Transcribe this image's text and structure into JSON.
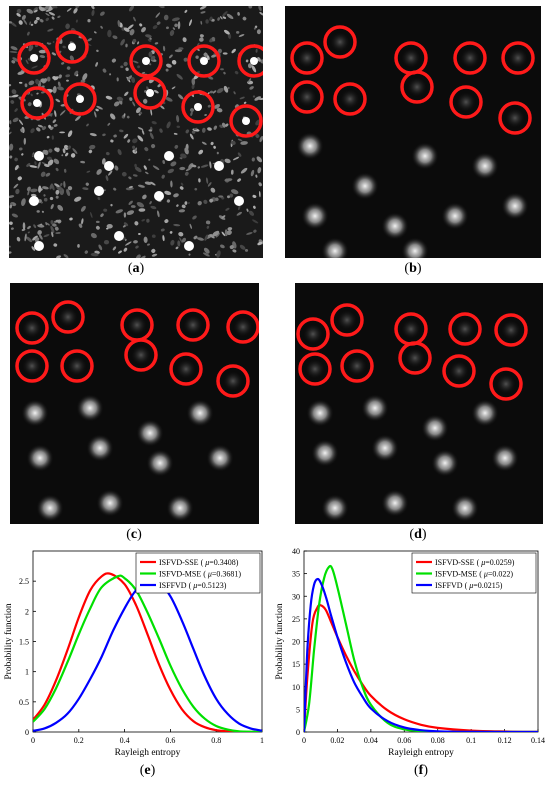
{
  "panels": [
    {
      "id": "a",
      "caption_letter": "a"
    },
    {
      "id": "b",
      "caption_letter": "b"
    },
    {
      "id": "c",
      "caption_letter": "c"
    },
    {
      "id": "d",
      "caption_letter": "d"
    }
  ],
  "chart_data": [
    {
      "type": "line",
      "caption_letter": "e",
      "xlabel": "Rayleigh entropy",
      "ylabel": "Probability function",
      "xlim": [
        0,
        1
      ],
      "ylim": [
        0,
        3
      ],
      "xticks": [
        0,
        0.2,
        0.4,
        0.6,
        0.8,
        1
      ],
      "xtick_labels": [
        "0",
        "0.2",
        "0.4",
        "0.6",
        "0.8",
        "1"
      ],
      "yticks": [
        0,
        0.5,
        1,
        1.5,
        2,
        2.5
      ],
      "ytick_labels": [
        "0",
        "0.5",
        "1",
        "1.5",
        "2",
        "2.5"
      ],
      "legend_placement": "top-right",
      "series": [
        {
          "name": "ISFVD-SSE",
          "mu": "0.3408",
          "color": "#ff0000",
          "x": [
            0,
            0.05,
            0.1,
            0.15,
            0.2,
            0.25,
            0.3,
            0.34,
            0.4,
            0.45,
            0.5,
            0.55,
            0.6,
            0.65,
            0.7,
            0.75,
            0.8,
            0.85,
            0.9,
            1.0
          ],
          "y": [
            0.2,
            0.45,
            0.85,
            1.35,
            1.9,
            2.35,
            2.58,
            2.62,
            2.45,
            2.1,
            1.62,
            1.12,
            0.7,
            0.38,
            0.18,
            0.08,
            0.03,
            0.01,
            0.0,
            0.0
          ]
        },
        {
          "name": "ISFVD-MSE",
          "mu": "0.3681",
          "color": "#00e000",
          "x": [
            0,
            0.05,
            0.1,
            0.15,
            0.2,
            0.25,
            0.3,
            0.37,
            0.4,
            0.45,
            0.5,
            0.55,
            0.6,
            0.65,
            0.7,
            0.75,
            0.8,
            0.85,
            0.9,
            1.0
          ],
          "y": [
            0.17,
            0.38,
            0.72,
            1.15,
            1.62,
            2.05,
            2.4,
            2.58,
            2.55,
            2.35,
            1.98,
            1.55,
            1.1,
            0.72,
            0.42,
            0.22,
            0.1,
            0.04,
            0.01,
            0.0
          ]
        },
        {
          "name": "ISFFVD",
          "mu": "0.5123",
          "color": "#0000ff",
          "x": [
            0,
            0.05,
            0.1,
            0.15,
            0.2,
            0.25,
            0.3,
            0.35,
            0.4,
            0.45,
            0.51,
            0.55,
            0.6,
            0.65,
            0.7,
            0.75,
            0.8,
            0.85,
            0.9,
            0.95,
            1.0
          ],
          "y": [
            0.02,
            0.06,
            0.15,
            0.3,
            0.55,
            0.88,
            1.25,
            1.68,
            2.05,
            2.35,
            2.52,
            2.48,
            2.25,
            1.85,
            1.38,
            0.92,
            0.55,
            0.3,
            0.14,
            0.06,
            0.02
          ]
        }
      ]
    },
    {
      "type": "line",
      "caption_letter": "f",
      "xlabel": "Rayleigh entropy",
      "ylabel": "Probability function",
      "xlim": [
        0,
        0.14
      ],
      "ylim": [
        0,
        40
      ],
      "xticks": [
        0,
        0.02,
        0.04,
        0.06,
        0.08,
        0.1,
        0.12,
        0.14
      ],
      "xtick_labels": [
        "0",
        "0.02",
        "0.04",
        "0.06",
        "0.08",
        "0.1",
        "0.12",
        "0.14"
      ],
      "yticks": [
        0,
        5,
        10,
        15,
        20,
        25,
        30,
        35,
        40
      ],
      "ytick_labels": [
        "0",
        "5",
        "10",
        "15",
        "20",
        "25",
        "30",
        "35",
        "40"
      ],
      "legend_placement": "top-right",
      "series": [
        {
          "name": "ISFVD-SSE",
          "mu": "0.0259",
          "color": "#ff0000",
          "x": [
            0,
            0.002,
            0.005,
            0.008,
            0.01,
            0.013,
            0.016,
            0.02,
            0.025,
            0.03,
            0.035,
            0.04,
            0.05,
            0.06,
            0.07,
            0.08,
            0.1,
            0.12,
            0.14
          ],
          "y": [
            0,
            12,
            24,
            27.5,
            28,
            27,
            24.5,
            21,
            17,
            13.5,
            10.5,
            8,
            4.8,
            2.8,
            1.6,
            0.9,
            0.3,
            0.1,
            0.02
          ]
        },
        {
          "name": "ISFVD-MSE",
          "mu": "0.022",
          "color": "#00e000",
          "x": [
            0,
            0.003,
            0.006,
            0.009,
            0.012,
            0.015,
            0.017,
            0.02,
            0.025,
            0.03,
            0.035,
            0.04,
            0.05,
            0.06,
            0.07,
            0.08,
            0.1,
            0.14
          ],
          "y": [
            0,
            6,
            18,
            28,
            34,
            36.5,
            36,
            32,
            24,
            16,
            10,
            6,
            2,
            0.6,
            0.2,
            0.05,
            0.0,
            0.0
          ]
        },
        {
          "name": "ISFFVD",
          "mu": "0.0215",
          "color": "#0000ff",
          "x": [
            0,
            0.002,
            0.004,
            0.006,
            0.008,
            0.01,
            0.013,
            0.016,
            0.02,
            0.025,
            0.03,
            0.035,
            0.04,
            0.05,
            0.06,
            0.07,
            0.08,
            0.1,
            0.14
          ],
          "y": [
            0,
            18,
            28,
            32.5,
            33.8,
            33,
            30,
            26,
            21,
            15.5,
            11,
            7.8,
            5.2,
            2.4,
            1.0,
            0.4,
            0.15,
            0.02,
            0.0
          ]
        }
      ]
    }
  ]
}
